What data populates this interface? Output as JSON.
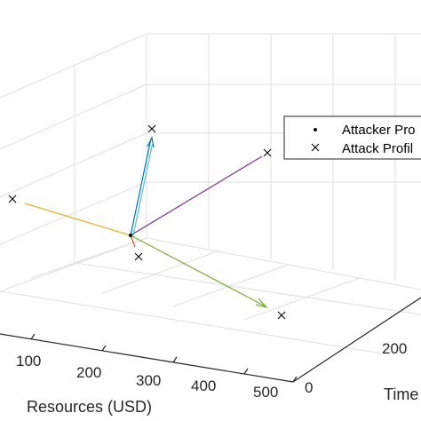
{
  "chart_data": {
    "type": "scatter3d",
    "title": "",
    "xlabel": "Resources (USD)",
    "ylabel": "Time",
    "zlabel": "",
    "xticks": [
      "100",
      "200",
      "300",
      "400",
      "500"
    ],
    "yticks": [
      "0",
      "200"
    ],
    "grid": true,
    "legend": {
      "placement": "right",
      "entries": [
        {
          "label": "Attacker Pro",
          "marker": "dot"
        },
        {
          "label": "Attack Profil",
          "marker": "cross"
        }
      ]
    },
    "colors": {
      "axis": "#262626",
      "grid": "#dfdfdf",
      "marker": "#000000",
      "blue": "#0072bd",
      "orange": "#edb120",
      "purple": "#7e2f8e",
      "green": "#77ac30",
      "cyan": "#4dbeee"
    }
  }
}
